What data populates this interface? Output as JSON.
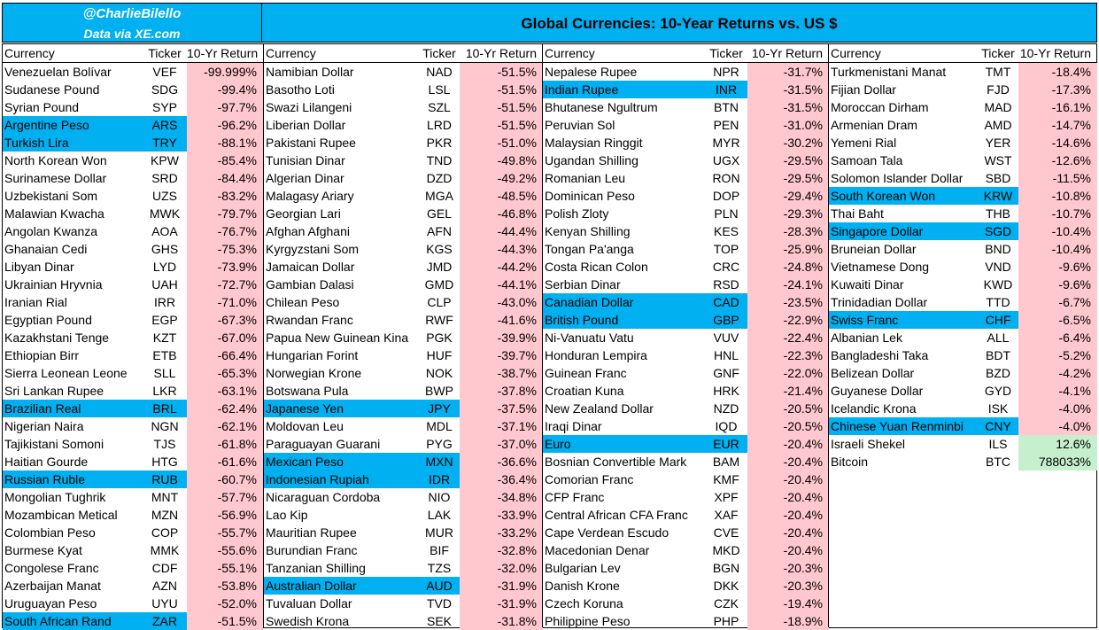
{
  "header": {
    "handle": "@CharlieBilello",
    "source": "Data via XE.com",
    "title": "Global Currencies: 10-Year Returns vs. US $"
  },
  "columns_header": {
    "currency": "Currency",
    "ticker": "Ticker",
    "return": "10-Yr Return"
  },
  "colors": {
    "header_bg": "#00b0f0",
    "highlight": "#00b0f0",
    "negative": "#ffc7ce",
    "positive": "#c6efce"
  },
  "table": [
    [
      {
        "currency": "Venezuelan Bolívar",
        "ticker": "VEF",
        "ret": "-99.999%",
        "hl": false
      },
      {
        "currency": "Sudanese Pound",
        "ticker": "SDG",
        "ret": "-99.4%",
        "hl": false
      },
      {
        "currency": "Syrian Pound",
        "ticker": "SYP",
        "ret": "-97.7%",
        "hl": false
      },
      {
        "currency": "Argentine Peso",
        "ticker": "ARS",
        "ret": "-96.2%",
        "hl": true
      },
      {
        "currency": "Turkish Lira",
        "ticker": "TRY",
        "ret": "-88.1%",
        "hl": true
      },
      {
        "currency": "North Korean Won",
        "ticker": "KPW",
        "ret": "-85.4%",
        "hl": false
      },
      {
        "currency": "Surinamese Dollar",
        "ticker": "SRD",
        "ret": "-84.4%",
        "hl": false
      },
      {
        "currency": "Uzbekistani Som",
        "ticker": "UZS",
        "ret": "-83.2%",
        "hl": false
      },
      {
        "currency": "Malawian Kwacha",
        "ticker": "MWK",
        "ret": "-79.7%",
        "hl": false
      },
      {
        "currency": "Angolan Kwanza",
        "ticker": "AOA",
        "ret": "-76.7%",
        "hl": false
      },
      {
        "currency": "Ghanaian Cedi",
        "ticker": "GHS",
        "ret": "-75.3%",
        "hl": false
      },
      {
        "currency": "Libyan Dinar",
        "ticker": "LYD",
        "ret": "-73.9%",
        "hl": false
      },
      {
        "currency": "Ukrainian Hryvnia",
        "ticker": "UAH",
        "ret": "-72.7%",
        "hl": false
      },
      {
        "currency": "Iranian Rial",
        "ticker": "IRR",
        "ret": "-71.0%",
        "hl": false
      },
      {
        "currency": "Egyptian Pound",
        "ticker": "EGP",
        "ret": "-67.3%",
        "hl": false
      },
      {
        "currency": "Kazakhstani Tenge",
        "ticker": "KZT",
        "ret": "-67.0%",
        "hl": false
      },
      {
        "currency": "Ethiopian Birr",
        "ticker": "ETB",
        "ret": "-66.4%",
        "hl": false
      },
      {
        "currency": "Sierra Leonean Leone",
        "ticker": "SLL",
        "ret": "-65.3%",
        "hl": false
      },
      {
        "currency": "Sri Lankan Rupee",
        "ticker": "LKR",
        "ret": "-63.1%",
        "hl": false
      },
      {
        "currency": "Brazilian Real",
        "ticker": "BRL",
        "ret": "-62.4%",
        "hl": true
      },
      {
        "currency": "Nigerian Naira",
        "ticker": "NGN",
        "ret": "-62.1%",
        "hl": false
      },
      {
        "currency": "Tajikistani Somoni",
        "ticker": "TJS",
        "ret": "-61.8%",
        "hl": false
      },
      {
        "currency": "Haitian Gourde",
        "ticker": "HTG",
        "ret": "-61.6%",
        "hl": false
      },
      {
        "currency": "Russian Ruble",
        "ticker": "RUB",
        "ret": "-60.7%",
        "hl": true
      },
      {
        "currency": "Mongolian Tughrik",
        "ticker": "MNT",
        "ret": "-57.7%",
        "hl": false
      },
      {
        "currency": "Mozambican Metical",
        "ticker": "MZN",
        "ret": "-56.9%",
        "hl": false
      },
      {
        "currency": "Colombian Peso",
        "ticker": "COP",
        "ret": "-55.7%",
        "hl": false
      },
      {
        "currency": "Burmese Kyat",
        "ticker": "MMK",
        "ret": "-55.6%",
        "hl": false
      },
      {
        "currency": "Congolese Franc",
        "ticker": "CDF",
        "ret": "-55.1%",
        "hl": false
      },
      {
        "currency": "Azerbaijan Manat",
        "ticker": "AZN",
        "ret": "-53.8%",
        "hl": false
      },
      {
        "currency": "Uruguayan Peso",
        "ticker": "UYU",
        "ret": "-52.0%",
        "hl": false
      },
      {
        "currency": "South African Rand",
        "ticker": "ZAR",
        "ret": "-51.5%",
        "hl": true
      }
    ],
    [
      {
        "currency": "Namibian Dollar",
        "ticker": "NAD",
        "ret": "-51.5%",
        "hl": false
      },
      {
        "currency": "Basotho Loti",
        "ticker": "LSL",
        "ret": "-51.5%",
        "hl": false
      },
      {
        "currency": "Swazi Lilangeni",
        "ticker": "SZL",
        "ret": "-51.5%",
        "hl": false
      },
      {
        "currency": "Liberian Dollar",
        "ticker": "LRD",
        "ret": "-51.5%",
        "hl": false
      },
      {
        "currency": "Pakistani Rupee",
        "ticker": "PKR",
        "ret": "-51.0%",
        "hl": false
      },
      {
        "currency": "Tunisian Dinar",
        "ticker": "TND",
        "ret": "-49.8%",
        "hl": false
      },
      {
        "currency": "Algerian Dinar",
        "ticker": "DZD",
        "ret": "-49.2%",
        "hl": false
      },
      {
        "currency": "Malagasy Ariary",
        "ticker": "MGA",
        "ret": "-48.5%",
        "hl": false
      },
      {
        "currency": "Georgian Lari",
        "ticker": "GEL",
        "ret": "-46.8%",
        "hl": false
      },
      {
        "currency": "Afghan Afghani",
        "ticker": "AFN",
        "ret": "-44.4%",
        "hl": false
      },
      {
        "currency": "Kyrgyzstani Som",
        "ticker": "KGS",
        "ret": "-44.3%",
        "hl": false
      },
      {
        "currency": "Jamaican Dollar",
        "ticker": "JMD",
        "ret": "-44.2%",
        "hl": false
      },
      {
        "currency": "Gambian Dalasi",
        "ticker": "GMD",
        "ret": "-44.1%",
        "hl": false
      },
      {
        "currency": "Chilean Peso",
        "ticker": "CLP",
        "ret": "-43.0%",
        "hl": false
      },
      {
        "currency": "Rwandan Franc",
        "ticker": "RWF",
        "ret": "-41.6%",
        "hl": false
      },
      {
        "currency": "Papua New Guinean Kina",
        "ticker": "PGK",
        "ret": "-39.9%",
        "hl": false
      },
      {
        "currency": "Hungarian Forint",
        "ticker": "HUF",
        "ret": "-39.7%",
        "hl": false
      },
      {
        "currency": "Norwegian Krone",
        "ticker": "NOK",
        "ret": "-38.7%",
        "hl": false
      },
      {
        "currency": "Botswana Pula",
        "ticker": "BWP",
        "ret": "-37.8%",
        "hl": false
      },
      {
        "currency": "Japanese Yen",
        "ticker": "JPY",
        "ret": "-37.5%",
        "hl": true
      },
      {
        "currency": "Moldovan Leu",
        "ticker": "MDL",
        "ret": "-37.1%",
        "hl": false
      },
      {
        "currency": "Paraguayan Guarani",
        "ticker": "PYG",
        "ret": "-37.0%",
        "hl": false
      },
      {
        "currency": "Mexican Peso",
        "ticker": "MXN",
        "ret": "-36.6%",
        "hl": true
      },
      {
        "currency": "Indonesian Rupiah",
        "ticker": "IDR",
        "ret": "-36.4%",
        "hl": true
      },
      {
        "currency": "Nicaraguan Cordoba",
        "ticker": "NIO",
        "ret": "-34.8%",
        "hl": false
      },
      {
        "currency": "Lao Kip",
        "ticker": "LAK",
        "ret": "-33.9%",
        "hl": false
      },
      {
        "currency": "Mauritian Rupee",
        "ticker": "MUR",
        "ret": "-33.2%",
        "hl": false
      },
      {
        "currency": "Burundian Franc",
        "ticker": "BIF",
        "ret": "-32.8%",
        "hl": false
      },
      {
        "currency": "Tanzanian Shilling",
        "ticker": "TZS",
        "ret": "-32.0%",
        "hl": false
      },
      {
        "currency": "Australian Dollar",
        "ticker": "AUD",
        "ret": "-31.9%",
        "hl": true
      },
      {
        "currency": "Tuvaluan Dollar",
        "ticker": "TVD",
        "ret": "-31.9%",
        "hl": false
      },
      {
        "currency": "Swedish Krona",
        "ticker": "SEK",
        "ret": "-31.8%",
        "hl": false
      }
    ],
    [
      {
        "currency": "Nepalese Rupee",
        "ticker": "NPR",
        "ret": "-31.7%",
        "hl": false
      },
      {
        "currency": "Indian Rupee",
        "ticker": "INR",
        "ret": "-31.5%",
        "hl": true
      },
      {
        "currency": "Bhutanese Ngultrum",
        "ticker": "BTN",
        "ret": "-31.5%",
        "hl": false
      },
      {
        "currency": "Peruvian Sol",
        "ticker": "PEN",
        "ret": "-31.0%",
        "hl": false
      },
      {
        "currency": "Malaysian Ringgit",
        "ticker": "MYR",
        "ret": "-30.2%",
        "hl": false
      },
      {
        "currency": "Ugandan Shilling",
        "ticker": "UGX",
        "ret": "-29.5%",
        "hl": false
      },
      {
        "currency": "Romanian Leu",
        "ticker": "RON",
        "ret": "-29.5%",
        "hl": false
      },
      {
        "currency": "Dominican Peso",
        "ticker": "DOP",
        "ret": "-29.4%",
        "hl": false
      },
      {
        "currency": "Polish Zloty",
        "ticker": "PLN",
        "ret": "-29.3%",
        "hl": false
      },
      {
        "currency": "Kenyan Shilling",
        "ticker": "KES",
        "ret": "-28.3%",
        "hl": false
      },
      {
        "currency": "Tongan Pa'anga",
        "ticker": "TOP",
        "ret": "-25.9%",
        "hl": false
      },
      {
        "currency": "Costa Rican Colon",
        "ticker": "CRC",
        "ret": "-24.8%",
        "hl": false
      },
      {
        "currency": "Serbian Dinar",
        "ticker": "RSD",
        "ret": "-24.1%",
        "hl": false
      },
      {
        "currency": "Canadian Dollar",
        "ticker": "CAD",
        "ret": "-23.5%",
        "hl": true
      },
      {
        "currency": "British Pound",
        "ticker": "GBP",
        "ret": "-22.9%",
        "hl": true
      },
      {
        "currency": "Ni-Vanuatu Vatu",
        "ticker": "VUV",
        "ret": "-22.4%",
        "hl": false
      },
      {
        "currency": "Honduran Lempira",
        "ticker": "HNL",
        "ret": "-22.3%",
        "hl": false
      },
      {
        "currency": "Guinean Franc",
        "ticker": "GNF",
        "ret": "-22.0%",
        "hl": false
      },
      {
        "currency": "Croatian Kuna",
        "ticker": "HRK",
        "ret": "-21.4%",
        "hl": false
      },
      {
        "currency": "New Zealand Dollar",
        "ticker": "NZD",
        "ret": "-20.5%",
        "hl": false
      },
      {
        "currency": "Iraqi Dinar",
        "ticker": "IQD",
        "ret": "-20.5%",
        "hl": false
      },
      {
        "currency": "Euro",
        "ticker": "EUR",
        "ret": "-20.4%",
        "hl": true
      },
      {
        "currency": "Bosnian Convertible Mark",
        "ticker": "BAM",
        "ret": "-20.4%",
        "hl": false
      },
      {
        "currency": "Comorian Franc",
        "ticker": "KMF",
        "ret": "-20.4%",
        "hl": false
      },
      {
        "currency": "CFP Franc",
        "ticker": "XPF",
        "ret": "-20.4%",
        "hl": false
      },
      {
        "currency": "Central African CFA Franc",
        "ticker": "XAF",
        "ret": "-20.4%",
        "hl": false
      },
      {
        "currency": "Cape Verdean Escudo",
        "ticker": "CVE",
        "ret": "-20.4%",
        "hl": false
      },
      {
        "currency": "Macedonian Denar",
        "ticker": "MKD",
        "ret": "-20.4%",
        "hl": false
      },
      {
        "currency": "Bulgarian Lev",
        "ticker": "BGN",
        "ret": "-20.3%",
        "hl": false
      },
      {
        "currency": "Danish Krone",
        "ticker": "DKK",
        "ret": "-20.3%",
        "hl": false
      },
      {
        "currency": "Czech Koruna",
        "ticker": "CZK",
        "ret": "-19.4%",
        "hl": false
      },
      {
        "currency": "Philippine Peso",
        "ticker": "PHP",
        "ret": "-18.9%",
        "hl": false
      }
    ],
    [
      {
        "currency": "Turkmenistani Manat",
        "ticker": "TMT",
        "ret": "-18.4%",
        "hl": false
      },
      {
        "currency": "Fijian Dollar",
        "ticker": "FJD",
        "ret": "-17.3%",
        "hl": false
      },
      {
        "currency": "Moroccan Dirham",
        "ticker": "MAD",
        "ret": "-16.1%",
        "hl": false
      },
      {
        "currency": "Armenian Dram",
        "ticker": "AMD",
        "ret": "-14.7%",
        "hl": false
      },
      {
        "currency": "Yemeni Rial",
        "ticker": "YER",
        "ret": "-14.6%",
        "hl": false
      },
      {
        "currency": "Samoan Tala",
        "ticker": "WST",
        "ret": "-12.6%",
        "hl": false
      },
      {
        "currency": "Solomon Islander Dollar",
        "ticker": "SBD",
        "ret": "-11.5%",
        "hl": false
      },
      {
        "currency": "South Korean Won",
        "ticker": "KRW",
        "ret": "-10.8%",
        "hl": true
      },
      {
        "currency": "Thai Baht",
        "ticker": "THB",
        "ret": "-10.7%",
        "hl": false
      },
      {
        "currency": "Singapore Dollar",
        "ticker": "SGD",
        "ret": "-10.4%",
        "hl": true
      },
      {
        "currency": "Bruneian Dollar",
        "ticker": "BND",
        "ret": "-10.4%",
        "hl": false
      },
      {
        "currency": "Vietnamese Dong",
        "ticker": "VND",
        "ret": "-9.6%",
        "hl": false
      },
      {
        "currency": "Kuwaiti Dinar",
        "ticker": "KWD",
        "ret": "-9.6%",
        "hl": false
      },
      {
        "currency": "Trinidadian Dollar",
        "ticker": "TTD",
        "ret": "-6.7%",
        "hl": false
      },
      {
        "currency": "Swiss Franc",
        "ticker": "CHF",
        "ret": "-6.5%",
        "hl": true
      },
      {
        "currency": "Albanian Lek",
        "ticker": "ALL",
        "ret": "-6.4%",
        "hl": false
      },
      {
        "currency": "Bangladeshi Taka",
        "ticker": "BDT",
        "ret": "-5.2%",
        "hl": false
      },
      {
        "currency": "Belizean Dollar",
        "ticker": "BZD",
        "ret": "-4.2%",
        "hl": false
      },
      {
        "currency": "Guyanese Dollar",
        "ticker": "GYD",
        "ret": "-4.1%",
        "hl": false
      },
      {
        "currency": "Icelandic Krona",
        "ticker": "ISK",
        "ret": "-4.0%",
        "hl": false
      },
      {
        "currency": "Chinese Yuan Renminbi",
        "ticker": "CNY",
        "ret": "-4.0%",
        "hl": true
      },
      {
        "currency": "Israeli Shekel",
        "ticker": "ILS",
        "ret": "12.6%",
        "hl": false
      },
      {
        "currency": "Bitcoin",
        "ticker": "BTC",
        "ret": "788033%",
        "hl": false
      }
    ]
  ]
}
